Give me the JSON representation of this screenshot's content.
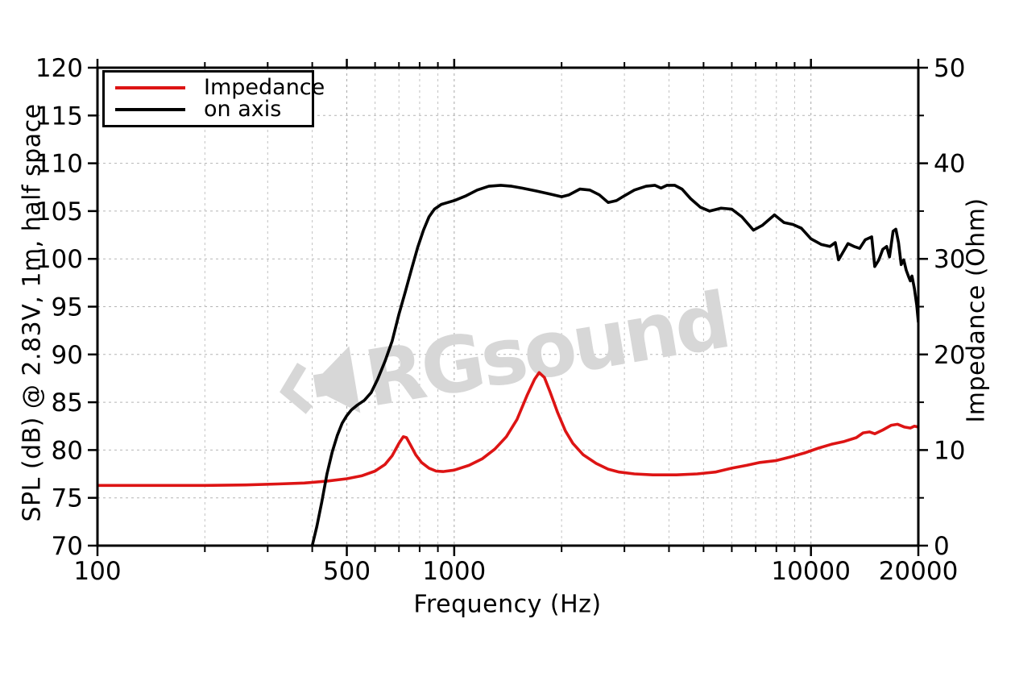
{
  "page": {
    "background": "#ffffff"
  },
  "watermark": {
    "text": "RGsound",
    "icon": "speaker-icon",
    "color": "#d7d7d7"
  },
  "chart_data": {
    "type": "line",
    "title": "",
    "xlabel": "Frequency (Hz)",
    "ylabel_left": "SPL (dB) @ 2.83V, 1m, half space",
    "ylabel_right": "Impedance (Ohm)",
    "x_scale": "log",
    "x_range": [
      100,
      20000
    ],
    "y_left_range": [
      70,
      120
    ],
    "y_right_range": [
      0,
      50
    ],
    "x_major_ticks": [
      100,
      500,
      1000,
      10000,
      20000
    ],
    "x_major_tick_labels": [
      "100",
      "500",
      "1000",
      "10000",
      "20000"
    ],
    "x_minor_ticks": [
      200,
      300,
      400,
      600,
      700,
      800,
      900,
      2000,
      3000,
      4000,
      5000,
      6000,
      7000,
      8000,
      9000
    ],
    "y_left_ticks": [
      70,
      75,
      80,
      85,
      90,
      95,
      100,
      105,
      110,
      115,
      120
    ],
    "y_left_tick_labels": [
      "70",
      "75",
      "80",
      "85",
      "90",
      "95",
      "100",
      "105",
      "110",
      "115",
      "120"
    ],
    "y_right_major_ticks": [
      0,
      10,
      20,
      30,
      40,
      50
    ],
    "y_right_tick_labels": [
      "0",
      "10",
      "20",
      "30",
      "40",
      "50"
    ],
    "y_right_minor_ticks": [
      5,
      15,
      25,
      35,
      45
    ],
    "grid": "dashed",
    "legend": {
      "position": "top-left",
      "entries": [
        {
          "label": "Impedance",
          "color": "#dd1414"
        },
        {
          "label": "on axis",
          "color": "#000000"
        }
      ]
    },
    "series": [
      {
        "name": "Impedance",
        "axis": "right",
        "unit": "Ohm",
        "color": "#dd1414",
        "points": [
          [
            100,
            6.3
          ],
          [
            140,
            6.3
          ],
          [
            200,
            6.3
          ],
          [
            260,
            6.35
          ],
          [
            320,
            6.45
          ],
          [
            380,
            6.55
          ],
          [
            440,
            6.75
          ],
          [
            500,
            7.0
          ],
          [
            550,
            7.3
          ],
          [
            600,
            7.8
          ],
          [
            640,
            8.5
          ],
          [
            670,
            9.4
          ],
          [
            700,
            10.7
          ],
          [
            720,
            11.4
          ],
          [
            735,
            11.3
          ],
          [
            755,
            10.5
          ],
          [
            780,
            9.5
          ],
          [
            810,
            8.7
          ],
          [
            850,
            8.1
          ],
          [
            890,
            7.8
          ],
          [
            930,
            7.75
          ],
          [
            1000,
            7.9
          ],
          [
            1100,
            8.4
          ],
          [
            1200,
            9.1
          ],
          [
            1300,
            10.1
          ],
          [
            1400,
            11.4
          ],
          [
            1500,
            13.2
          ],
          [
            1600,
            15.7
          ],
          [
            1680,
            17.4
          ],
          [
            1730,
            18.1
          ],
          [
            1790,
            17.6
          ],
          [
            1860,
            16.0
          ],
          [
            1950,
            13.9
          ],
          [
            2050,
            12.0
          ],
          [
            2150,
            10.7
          ],
          [
            2300,
            9.5
          ],
          [
            2500,
            8.6
          ],
          [
            2700,
            8.0
          ],
          [
            2900,
            7.7
          ],
          [
            3200,
            7.5
          ],
          [
            3600,
            7.4
          ],
          [
            4200,
            7.4
          ],
          [
            4800,
            7.5
          ],
          [
            5400,
            7.7
          ],
          [
            6000,
            8.1
          ],
          [
            6600,
            8.4
          ],
          [
            7200,
            8.7
          ],
          [
            8000,
            8.9
          ],
          [
            8800,
            9.3
          ],
          [
            9600,
            9.7
          ],
          [
            10500,
            10.2
          ],
          [
            11400,
            10.6
          ],
          [
            12400,
            10.9
          ],
          [
            13400,
            11.3
          ],
          [
            14000,
            11.8
          ],
          [
            14600,
            11.9
          ],
          [
            15100,
            11.7
          ],
          [
            15900,
            12.1
          ],
          [
            16800,
            12.6
          ],
          [
            17500,
            12.7
          ],
          [
            18300,
            12.4
          ],
          [
            19000,
            12.3
          ],
          [
            19500,
            12.5
          ],
          [
            20000,
            12.4
          ]
        ]
      },
      {
        "name": "on axis",
        "axis": "left",
        "unit": "dB SPL",
        "color": "#000000",
        "points": [
          [
            400,
            70
          ],
          [
            412,
            72
          ],
          [
            425,
            74.5
          ],
          [
            440,
            77.5
          ],
          [
            455,
            79.8
          ],
          [
            470,
            81.5
          ],
          [
            485,
            82.8
          ],
          [
            500,
            83.6
          ],
          [
            515,
            84.2
          ],
          [
            535,
            84.7
          ],
          [
            560,
            85.2
          ],
          [
            585,
            86.0
          ],
          [
            610,
            87.4
          ],
          [
            640,
            89.3
          ],
          [
            670,
            91.4
          ],
          [
            700,
            94.2
          ],
          [
            730,
            96.6
          ],
          [
            760,
            99.0
          ],
          [
            790,
            101.2
          ],
          [
            820,
            103.0
          ],
          [
            850,
            104.4
          ],
          [
            880,
            105.2
          ],
          [
            920,
            105.7
          ],
          [
            960,
            105.9
          ],
          [
            1000,
            106.1
          ],
          [
            1080,
            106.6
          ],
          [
            1160,
            107.2
          ],
          [
            1250,
            107.6
          ],
          [
            1350,
            107.7
          ],
          [
            1450,
            107.6
          ],
          [
            1550,
            107.4
          ],
          [
            1700,
            107.1
          ],
          [
            1850,
            106.8
          ],
          [
            2000,
            106.5
          ],
          [
            2100,
            106.7
          ],
          [
            2250,
            107.3
          ],
          [
            2400,
            107.2
          ],
          [
            2550,
            106.7
          ],
          [
            2700,
            105.9
          ],
          [
            2850,
            106.1
          ],
          [
            3000,
            106.6
          ],
          [
            3200,
            107.2
          ],
          [
            3450,
            107.6
          ],
          [
            3650,
            107.7
          ],
          [
            3800,
            107.4
          ],
          [
            3950,
            107.7
          ],
          [
            4150,
            107.7
          ],
          [
            4350,
            107.3
          ],
          [
            4600,
            106.3
          ],
          [
            4900,
            105.4
          ],
          [
            5200,
            105.0
          ],
          [
            5600,
            105.3
          ],
          [
            6000,
            105.2
          ],
          [
            6400,
            104.4
          ],
          [
            6900,
            103.0
          ],
          [
            7300,
            103.5
          ],
          [
            7900,
            104.6
          ],
          [
            8400,
            103.8
          ],
          [
            8900,
            103.6
          ],
          [
            9400,
            103.2
          ],
          [
            10000,
            102.1
          ],
          [
            10700,
            101.5
          ],
          [
            11300,
            101.3
          ],
          [
            11700,
            101.7
          ],
          [
            11950,
            99.9
          ],
          [
            12300,
            100.7
          ],
          [
            12700,
            101.6
          ],
          [
            13200,
            101.3
          ],
          [
            13700,
            101.1
          ],
          [
            14200,
            102.0
          ],
          [
            14800,
            102.3
          ],
          [
            15100,
            99.2
          ],
          [
            15500,
            99.9
          ],
          [
            15900,
            101.0
          ],
          [
            16300,
            101.3
          ],
          [
            16600,
            100.2
          ],
          [
            17000,
            102.9
          ],
          [
            17300,
            103.1
          ],
          [
            17600,
            101.7
          ],
          [
            17900,
            99.4
          ],
          [
            18200,
            99.9
          ],
          [
            18500,
            98.8
          ],
          [
            18800,
            98.1
          ],
          [
            19000,
            97.7
          ],
          [
            19200,
            98.2
          ],
          [
            19500,
            96.9
          ],
          [
            19800,
            95.1
          ],
          [
            20000,
            93.4
          ]
        ]
      }
    ]
  }
}
